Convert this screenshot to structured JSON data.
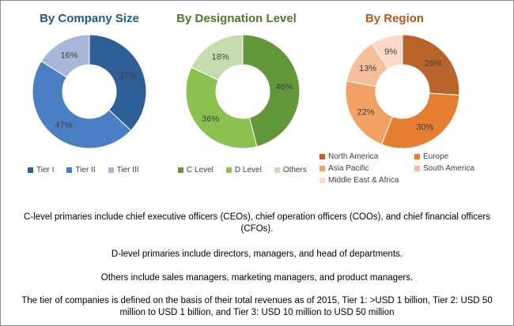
{
  "chart_data": [
    {
      "type": "pie",
      "title": "By Company Size",
      "title_color": "#1f5c8b",
      "categories": [
        "Tier I",
        "Tier II",
        "Tier III"
      ],
      "values": [
        37,
        47,
        16
      ],
      "labels": [
        "37%",
        "47%",
        "16%"
      ],
      "colors": [
        "#2f5f97",
        "#4a7fc4",
        "#a8b7d8"
      ],
      "legend": "bottom"
    },
    {
      "type": "pie",
      "title": "By Designation Level",
      "title_color": "#4f7a28",
      "categories": [
        "C Level",
        "D Level",
        "Others"
      ],
      "values": [
        46,
        36,
        18
      ],
      "labels": [
        "46%",
        "36%",
        "18%"
      ],
      "colors": [
        "#62983a",
        "#8cc152",
        "#c6dcae"
      ],
      "legend": "bottom"
    },
    {
      "type": "pie",
      "title": "By Region",
      "title_color": "#b35a1f",
      "categories": [
        "North America",
        "Europe",
        "Asia Pacific",
        "South America",
        "Middle East & Africa"
      ],
      "values": [
        26,
        30,
        22,
        13,
        9
      ],
      "labels": [
        "26%",
        "30%",
        "22%",
        "13%",
        "9%"
      ],
      "colors": [
        "#b8642a",
        "#e67e31",
        "#f3a064",
        "#f5bf9c",
        "#fbd9c6"
      ],
      "legend": "bottom"
    }
  ],
  "notes": {
    "c_level": "C-level primaries include chief executive officers (CEOs), chief operation officers (COOs), and chief financial officers (CFOs).",
    "d_level": "D-level primaries include directors, managers, and head of departments.",
    "others": "Others include sales managers, marketing  managers, and product managers.",
    "tier": "The tier of companies is defined on the basis of their total revenues as of 2015, Tier 1: >USD 1 billion, Tier 2: USD 50 million to USD 1 billion, and Tier 3: USD 10 million to USD 50 million"
  }
}
